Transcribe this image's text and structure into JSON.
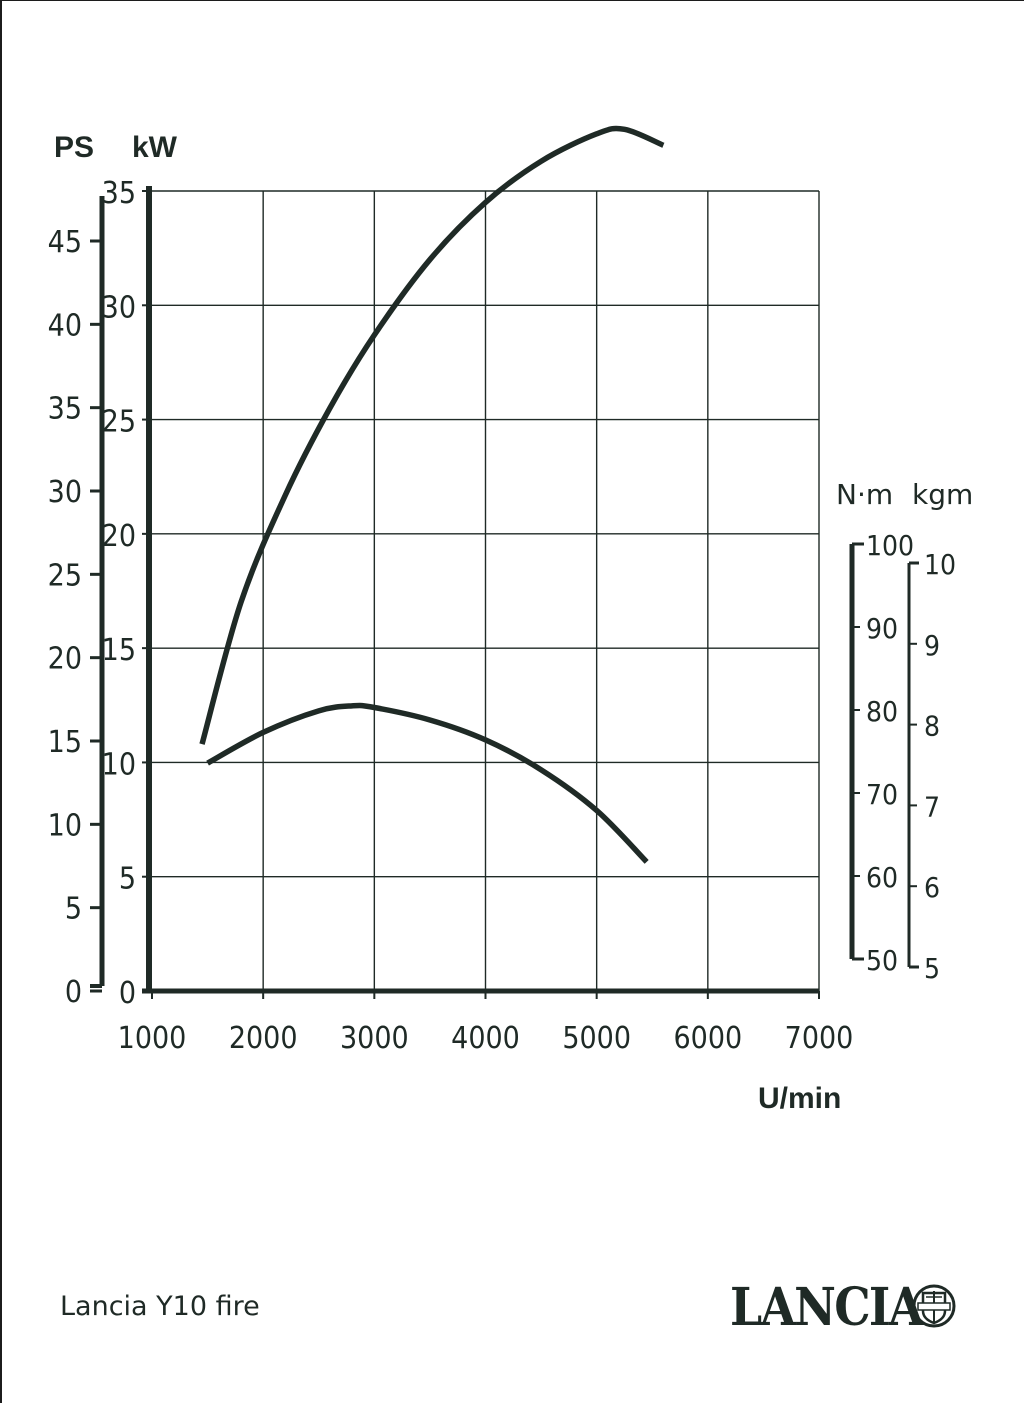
{
  "chart_data": {
    "type": "line",
    "title": "",
    "x": {
      "label": "U/min",
      "range": [
        1000,
        7000
      ],
      "ticks": [
        "1000",
        "2000",
        "3000",
        "4000",
        "5000",
        "6000",
        "7000"
      ]
    },
    "left_axes": [
      {
        "unit": "PS",
        "range": [
          0,
          48
        ],
        "ticks": [
          "0",
          "5",
          "10",
          "15",
          "20",
          "25",
          "30",
          "35",
          "40",
          "45"
        ]
      },
      {
        "unit": "kW",
        "range": [
          0,
          35
        ],
        "ticks": [
          "0",
          "5",
          "10",
          "15",
          "20",
          "25",
          "30",
          "35"
        ]
      }
    ],
    "right_axes": [
      {
        "unit": "N·m",
        "range": [
          50,
          100
        ],
        "ticks": [
          "50",
          "60",
          "70",
          "80",
          "90",
          "100"
        ]
      },
      {
        "unit": "kgm",
        "range": [
          5,
          10
        ],
        "ticks": [
          "5",
          "6",
          "7",
          "8",
          "9",
          "10"
        ]
      }
    ],
    "series": [
      {
        "axis": "kW",
        "points": [
          [
            1450,
            10.8
          ],
          [
            1800,
            17.0
          ],
          [
            2200,
            21.7
          ],
          [
            2600,
            25.5
          ],
          [
            3000,
            28.7
          ],
          [
            3500,
            32.0
          ],
          [
            4000,
            34.5
          ],
          [
            4500,
            36.3
          ],
          [
            5000,
            37.5
          ],
          [
            5250,
            37.7
          ],
          [
            5600,
            37.0
          ]
        ]
      },
      {
        "axis": "N·m",
        "points": [
          [
            1500,
            73.6
          ],
          [
            2000,
            77.3
          ],
          [
            2500,
            79.9
          ],
          [
            2800,
            80.5
          ],
          [
            3000,
            80.3
          ],
          [
            3500,
            78.8
          ],
          [
            4000,
            76.4
          ],
          [
            4500,
            72.8
          ],
          [
            5000,
            67.9
          ],
          [
            5450,
            61.7
          ]
        ]
      }
    ],
    "grid": true,
    "legend": "none"
  },
  "caption": "Lancia Y10 fire",
  "logo": "LANCIA",
  "emblem_icon": "lancia-shield-icon",
  "colors": {
    "ink": "#1f2a26",
    "background": "#ffffff"
  }
}
